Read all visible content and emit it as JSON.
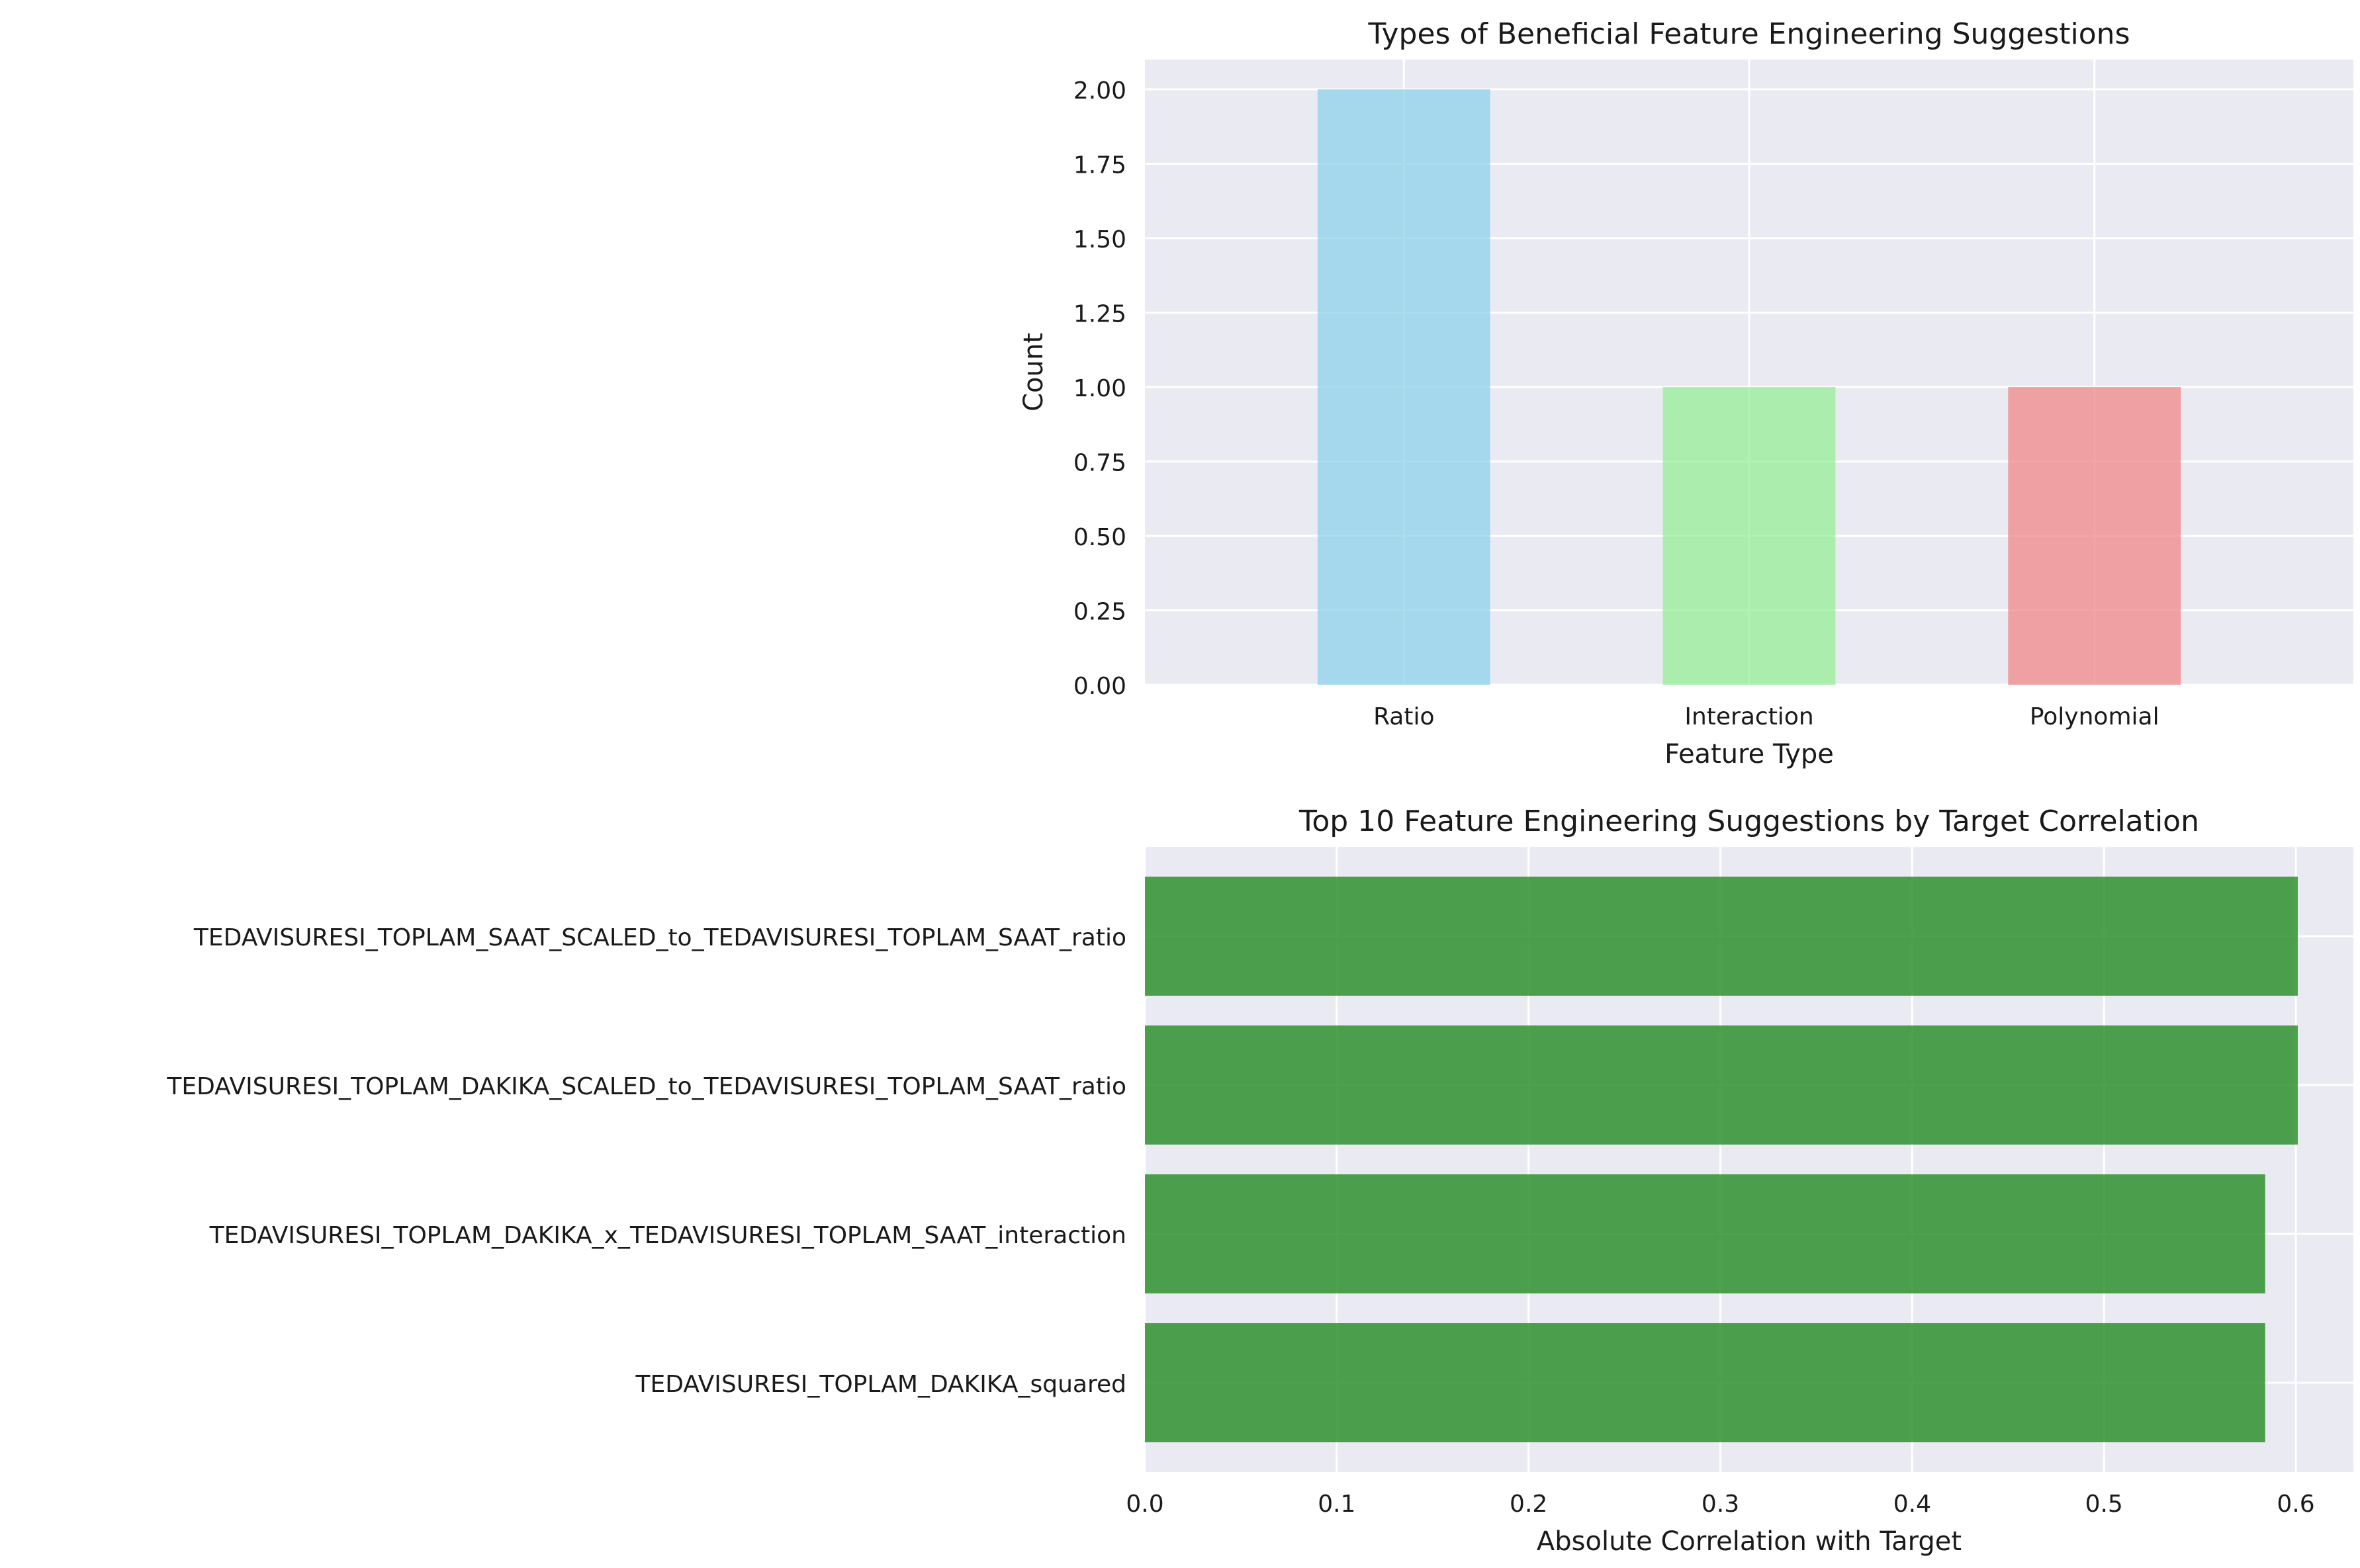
{
  "chart_data": [
    {
      "type": "bar",
      "title": "Types of Beneficial Feature Engineering Suggestions",
      "xlabel": "Feature Type",
      "ylabel": "Count",
      "categories": [
        "Ratio",
        "Interaction",
        "Polynomial"
      ],
      "values": [
        2,
        1,
        1
      ],
      "colors": [
        "#87ceeb",
        "#90ee90",
        "#f08080"
      ],
      "ylim": [
        0,
        2.1
      ],
      "yticks": [
        0.0,
        0.25,
        0.5,
        0.75,
        1.0,
        1.25,
        1.5,
        1.75,
        2.0
      ],
      "ytick_labels": [
        "0.00",
        "0.25",
        "0.50",
        "0.75",
        "1.00",
        "1.25",
        "1.50",
        "1.75",
        "2.00"
      ],
      "grid": true
    },
    {
      "type": "bar",
      "orientation": "horizontal",
      "title": "Top 10 Feature Engineering Suggestions by Target Correlation",
      "xlabel": "Absolute Correlation with Target",
      "ylabel": "",
      "categories": [
        "TEDAVISURESI_TOPLAM_SAAT_SCALED_to_TEDAVISURESI_TOPLAM_SAAT_ratio",
        "TEDAVISURESI_TOPLAM_DAKIKA_SCALED_to_TEDAVISURESI_TOPLAM_SAAT_ratio",
        "TEDAVISURESI_TOPLAM_DAKIKA_x_TEDAVISURESI_TOPLAM_SAAT_interaction",
        "TEDAVISURESI_TOPLAM_DAKIKA_squared"
      ],
      "values": [
        0.601,
        0.601,
        0.584,
        0.584
      ],
      "color": "#228b22",
      "xlim": [
        0,
        0.63
      ],
      "xticks": [
        0.0,
        0.1,
        0.2,
        0.3,
        0.4,
        0.5,
        0.6
      ],
      "xtick_labels": [
        "0.0",
        "0.1",
        "0.2",
        "0.3",
        "0.4",
        "0.5",
        "0.6"
      ],
      "grid": true
    }
  ]
}
